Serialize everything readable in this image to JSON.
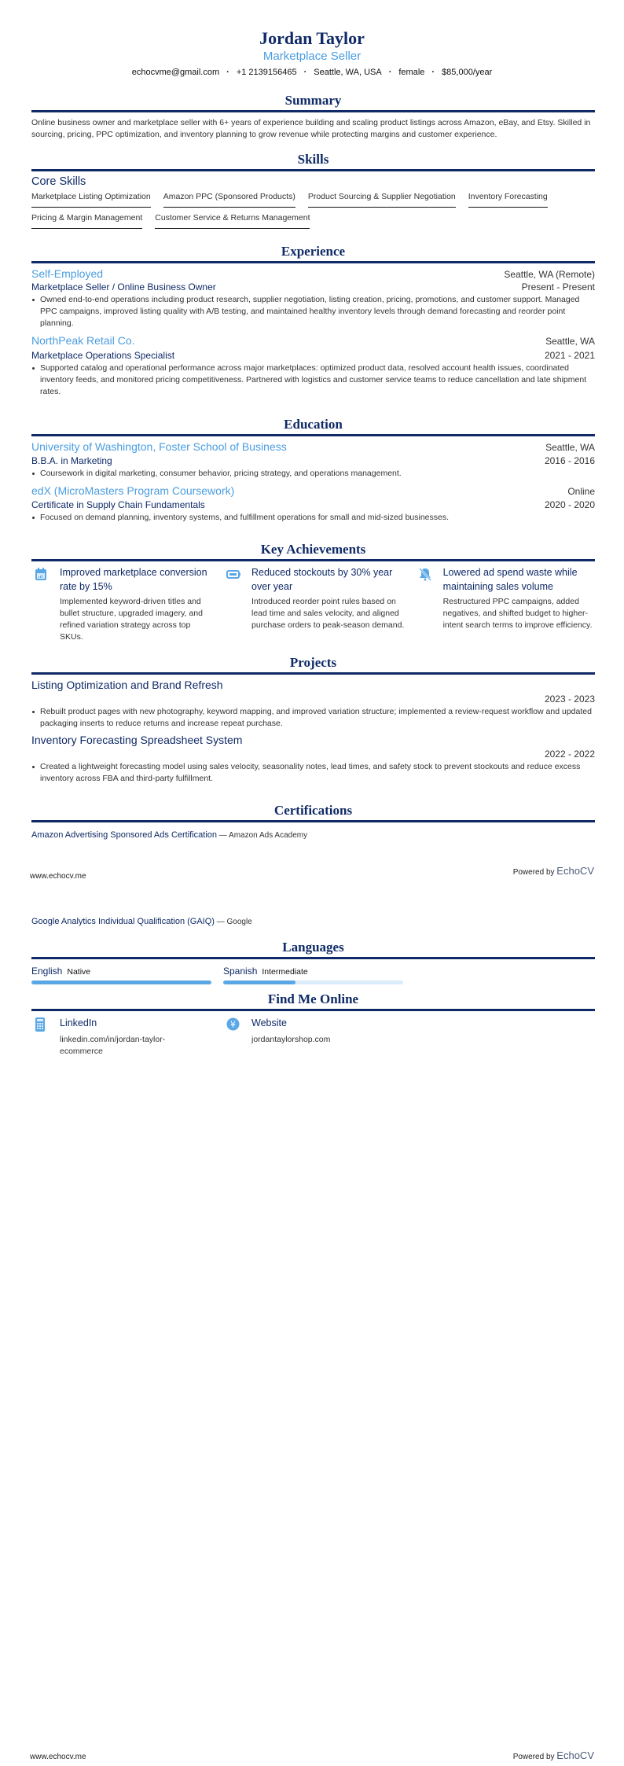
{
  "header": {
    "name": "Jordan Taylor",
    "title": "Marketplace Seller",
    "contact": [
      "echocvme@gmail.com",
      "+1 2139156465",
      "Seattle, WA, USA",
      "female",
      "$85,000/year"
    ]
  },
  "summary": {
    "heading": "Summary",
    "text": "Online business owner and marketplace seller with 6+ years of experience building and scaling product listings across Amazon, eBay, and Etsy. Skilled in sourcing, pricing, PPC optimization, and inventory planning to grow revenue while protecting margins and customer experience."
  },
  "skills": {
    "heading": "Skills",
    "group": "Core Skills",
    "items": [
      "Marketplace Listing Optimization",
      "Amazon PPC (Sponsored Products)",
      "Product Sourcing & Supplier Negotiation",
      "Inventory Forecasting",
      "Pricing & Margin Management",
      "Customer Service & Returns Management"
    ]
  },
  "experience": {
    "heading": "Experience",
    "items": [
      {
        "company": "Self-Employed",
        "location": "Seattle, WA (Remote)",
        "role": "Marketplace Seller / Online Business Owner",
        "dates": "Present - Present",
        "bullets": [
          "Owned end-to-end operations including product research, supplier negotiation, listing creation, pricing, promotions, and customer support. Managed PPC campaigns, improved listing quality with A/B testing, and maintained healthy inventory levels through demand forecasting and reorder point planning."
        ]
      },
      {
        "company": "NorthPeak Retail Co.",
        "location": "Seattle, WA",
        "role": "Marketplace Operations Specialist",
        "dates": "2021 - 2021",
        "bullets": [
          "Supported catalog and operational performance across major marketplaces: optimized product data, resolved account health issues, coordinated inventory feeds, and monitored pricing competitiveness. Partnered with logistics and customer service teams to reduce cancellation and late shipment rates."
        ]
      }
    ]
  },
  "education": {
    "heading": "Education",
    "items": [
      {
        "school": "University of Washington, Foster School of Business",
        "location": "Seattle, WA",
        "degree": "B.B.A. in Marketing",
        "dates": "2016 - 2016",
        "bullets": [
          "Coursework in digital marketing, consumer behavior, pricing strategy, and operations management."
        ]
      },
      {
        "school": "edX (MicroMasters Program Coursework)",
        "location": "Online",
        "degree": "Certificate in Supply Chain Fundamentals",
        "dates": "2020 - 2020",
        "bullets": [
          "Focused on demand planning, inventory systems, and fulfillment operations for small and mid-sized businesses."
        ]
      }
    ]
  },
  "achievements": {
    "heading": "Key Achievements",
    "items": [
      {
        "icon": "calendar-chart-icon",
        "title": "Improved marketplace conversion rate by 15%",
        "desc": "Implemented keyword-driven titles and bullet structure, upgraded imagery, and refined variation strategy across top SKUs."
      },
      {
        "icon": "battery-icon",
        "title": "Reduced stockouts by 30% year over year",
        "desc": "Introduced reorder point rules based on lead time and sales velocity, and aligned purchase orders to peak-season demand."
      },
      {
        "icon": "bell-slash-icon",
        "title": "Lowered ad spend waste while maintaining sales volume",
        "desc": "Restructured PPC campaigns, added negatives, and shifted budget to higher-intent search terms to improve efficiency."
      }
    ]
  },
  "projects": {
    "heading": "Projects",
    "items": [
      {
        "name": "Listing Optimization and Brand Refresh",
        "dates": "2023 - 2023",
        "bullets": [
          "Rebuilt product pages with new photography, keyword mapping, and improved variation structure; implemented a review-request workflow and updated packaging inserts to reduce returns and increase repeat purchase."
        ]
      },
      {
        "name": "Inventory Forecasting Spreadsheet System",
        "dates": "2022 - 2022",
        "bullets": [
          "Created a lightweight forecasting model using sales velocity, seasonality notes, lead times, and safety stock to prevent stockouts and reduce excess inventory across FBA and third-party fulfillment."
        ]
      }
    ]
  },
  "certifications": {
    "heading": "Certifications",
    "items": [
      {
        "name": "Amazon Advertising Sponsored Ads Certification",
        "issuer": "Amazon Ads Academy"
      },
      {
        "name": "Google Analytics Individual Qualification (GAIQ)",
        "issuer": "Google"
      }
    ]
  },
  "languages": {
    "heading": "Languages",
    "items": [
      {
        "name": "English",
        "level": "Native",
        "proficiency": 1.0
      },
      {
        "name": "Spanish",
        "level": "Intermediate",
        "proficiency": 0.4
      }
    ]
  },
  "online": {
    "heading": "Find Me Online",
    "items": [
      {
        "icon": "calculator-icon",
        "label": "LinkedIn",
        "value": "linkedin.com/in/jordan-taylor-ecommerce"
      },
      {
        "icon": "yen-circle-icon",
        "label": "Website",
        "value": "jordantaylorshop.com"
      }
    ]
  },
  "footer": {
    "site": "www.echocv.me",
    "powered": "Powered by",
    "brand": "EchoCV"
  },
  "colors": {
    "navy": "#0f2a66",
    "accent": "#4a9de0",
    "bar_fill": "#5aa7e6",
    "bar_track": "#dcebfa"
  }
}
